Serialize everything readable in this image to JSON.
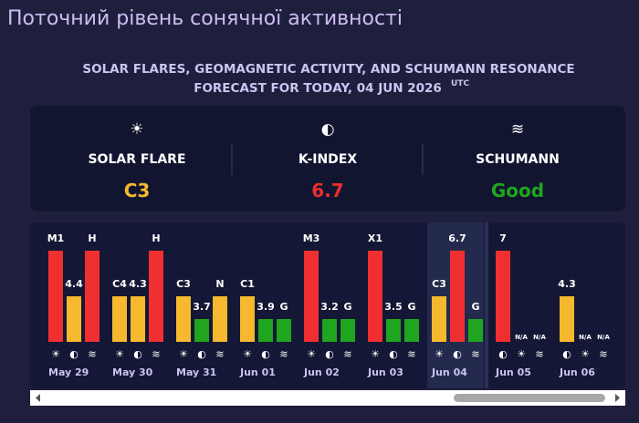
{
  "header": {
    "title": "Поточний рівень сонячної активності",
    "subtitle_line1": "SOLAR FLARES, GEOMAGNETIC ACTIVITY, AND SCHUMANN RESONANCE",
    "subtitle_line2": "FORECAST FOR TODAY, 04 JUN 2026",
    "subtitle_sup": "UTC"
  },
  "summary": [
    {
      "icon": "☀",
      "label": "SOLAR FLARE",
      "value": "C3",
      "color": "#f5b82e"
    },
    {
      "icon": "◐",
      "label": "K-INDEX",
      "value": "6.7",
      "color": "#ee2e2e"
    },
    {
      "icon": "≋",
      "label": "SCHUMANN",
      "value": "Good",
      "color": "#1fa51f"
    }
  ],
  "days": [
    {
      "date": "May 29",
      "items": [
        {
          "icon": "☀",
          "label": "M1",
          "color": "red"
        },
        {
          "icon": "◐",
          "label": "4.4",
          "color": "yellow"
        },
        {
          "icon": "≋",
          "label": "H",
          "color": "red"
        }
      ]
    },
    {
      "date": "May 30",
      "items": [
        {
          "icon": "☀",
          "label": "C4",
          "color": "yellow"
        },
        {
          "icon": "◐",
          "label": "4.3",
          "color": "yellow"
        },
        {
          "icon": "≋",
          "label": "H",
          "color": "red"
        }
      ]
    },
    {
      "date": "May 31",
      "items": [
        {
          "icon": "☀",
          "label": "C3",
          "color": "yellow"
        },
        {
          "icon": "◐",
          "label": "3.7",
          "color": "green"
        },
        {
          "icon": "≋",
          "label": "N",
          "color": "yellow"
        }
      ]
    },
    {
      "date": "Jun 01",
      "items": [
        {
          "icon": "☀",
          "label": "C1",
          "color": "yellow"
        },
        {
          "icon": "◐",
          "label": "3.9",
          "color": "green"
        },
        {
          "icon": "≋",
          "label": "G",
          "color": "green"
        }
      ]
    },
    {
      "date": "Jun 02",
      "items": [
        {
          "icon": "☀",
          "label": "M3",
          "color": "red"
        },
        {
          "icon": "◐",
          "label": "3.2",
          "color": "green"
        },
        {
          "icon": "≋",
          "label": "G",
          "color": "green"
        }
      ]
    },
    {
      "date": "Jun 03",
      "items": [
        {
          "icon": "☀",
          "label": "X1",
          "color": "red"
        },
        {
          "icon": "◐",
          "label": "3.5",
          "color": "green"
        },
        {
          "icon": "≋",
          "label": "G",
          "color": "green"
        }
      ]
    },
    {
      "date": "Jun 04",
      "highlight": true,
      "items": [
        {
          "icon": "☀",
          "label": "C3",
          "color": "yellow"
        },
        {
          "icon": "◐",
          "label": "6.7",
          "color": "red"
        },
        {
          "icon": "≋",
          "label": "G",
          "color": "green"
        }
      ]
    },
    {
      "date": "Jun 05",
      "items": [
        {
          "icon": "◐",
          "label": "7",
          "color": "red"
        },
        {
          "icon": "☀",
          "label": "N/A",
          "color": null
        },
        {
          "icon": "≋",
          "label": "N/A",
          "color": null
        }
      ]
    },
    {
      "date": "Jun 06",
      "items": [
        {
          "icon": "◐",
          "label": "4.3",
          "color": "yellow"
        },
        {
          "icon": "☀",
          "label": "N/A",
          "color": null
        },
        {
          "icon": "≋",
          "label": "N/A",
          "color": null
        }
      ]
    }
  ]
}
